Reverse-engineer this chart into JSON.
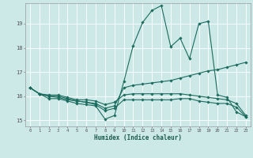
{
  "title": "",
  "xlabel": "Humidex (Indice chaleur)",
  "xlim": [
    -0.5,
    23.5
  ],
  "ylim": [
    14.75,
    19.85
  ],
  "xtick_labels": [
    "0",
    "1",
    "2",
    "3",
    "4",
    "5",
    "6",
    "7",
    "8",
    "9",
    "10",
    "11",
    "12",
    "13",
    "14",
    "15",
    "16",
    "17",
    "18",
    "19",
    "20",
    "21",
    "22",
    "23"
  ],
  "ytick_labels": [
    "15",
    "16",
    "17",
    "18",
    "19"
  ],
  "ytick_pos": [
    15,
    16,
    17,
    18,
    19
  ],
  "background_color": "#cce9e7",
  "grid_color": "#ffffff",
  "line_color": "#1b6b5e",
  "lines": [
    {
      "x": [
        0,
        1,
        2,
        3,
        4,
        5,
        6,
        7,
        8,
        9,
        10,
        11,
        12,
        13,
        14,
        15,
        16,
        17,
        18,
        19,
        20,
        21,
        22,
        23
      ],
      "y": [
        16.35,
        16.1,
        15.9,
        15.9,
        15.8,
        15.7,
        15.65,
        15.6,
        15.05,
        15.2,
        16.6,
        18.1,
        19.05,
        19.55,
        19.75,
        18.05,
        18.4,
        17.55,
        19.0,
        19.1,
        16.05,
        15.95,
        15.35,
        15.15
      ]
    },
    {
      "x": [
        0,
        1,
        2,
        3,
        4,
        5,
        6,
        7,
        8,
        9,
        10,
        11,
        12,
        13,
        14,
        15,
        16,
        17,
        18,
        19,
        20,
        21,
        22,
        23
      ],
      "y": [
        16.35,
        16.1,
        16.0,
        16.0,
        15.9,
        15.8,
        15.75,
        15.7,
        15.5,
        15.6,
        16.35,
        16.45,
        16.5,
        16.55,
        16.6,
        16.65,
        16.75,
        16.85,
        16.95,
        17.05,
        17.1,
        17.2,
        17.3,
        17.4
      ]
    },
    {
      "x": [
        0,
        1,
        2,
        3,
        4,
        5,
        6,
        7,
        8,
        9,
        10,
        11,
        12,
        13,
        14,
        15,
        16,
        17,
        18,
        19,
        20,
        21,
        22,
        23
      ],
      "y": [
        16.35,
        16.1,
        16.05,
        16.05,
        15.95,
        15.85,
        15.85,
        15.8,
        15.65,
        15.75,
        16.05,
        16.1,
        16.1,
        16.1,
        16.1,
        16.1,
        16.1,
        16.05,
        16.0,
        15.95,
        15.9,
        15.85,
        15.7,
        15.2
      ]
    },
    {
      "x": [
        0,
        1,
        2,
        3,
        4,
        5,
        6,
        7,
        8,
        9,
        10,
        11,
        12,
        13,
        14,
        15,
        16,
        17,
        18,
        19,
        20,
        21,
        22,
        23
      ],
      "y": [
        16.35,
        16.1,
        16.0,
        15.95,
        15.85,
        15.8,
        15.75,
        15.65,
        15.4,
        15.5,
        15.85,
        15.85,
        15.85,
        15.85,
        15.85,
        15.85,
        15.9,
        15.9,
        15.8,
        15.75,
        15.7,
        15.7,
        15.55,
        15.15
      ]
    }
  ],
  "marker": "D",
  "markersize": 1.8,
  "linewidth": 0.8
}
